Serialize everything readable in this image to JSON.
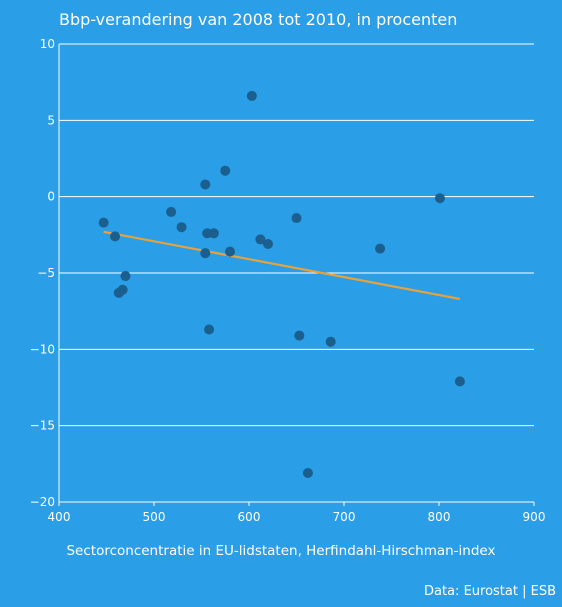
{
  "colors": {
    "background": "#2a9ee6",
    "grid": "#ffffff",
    "points": "#1a5f8e",
    "trendline": "#e8a23c",
    "text": "#ffffff"
  },
  "chart_data": {
    "type": "scatter",
    "title": "Bbp-verandering van 2008 tot 2010, in procenten",
    "xlabel": "Sectorconcentratie in EU-lidstaten, Herfindahl-Hirschman-index",
    "ylabel": "",
    "xlim": [
      400,
      900
    ],
    "ylim": [
      -20,
      10
    ],
    "xticks": [
      400,
      500,
      600,
      700,
      800,
      900
    ],
    "yticks": [
      10,
      5,
      0,
      -5,
      -10,
      -15,
      -20
    ],
    "xtick_labels": [
      "400",
      "500",
      "600",
      "700",
      "800",
      "900"
    ],
    "ytick_labels": [
      "10",
      "5",
      "0",
      "−5",
      "−10",
      "−15",
      "−20"
    ],
    "grid": "horizontal",
    "points": [
      {
        "x": 447,
        "y": -1.7
      },
      {
        "x": 459,
        "y": -2.6
      },
      {
        "x": 463,
        "y": -6.3
      },
      {
        "x": 467,
        "y": -6.1
      },
      {
        "x": 470,
        "y": -5.2
      },
      {
        "x": 518,
        "y": -1.0
      },
      {
        "x": 529,
        "y": -2.0
      },
      {
        "x": 554,
        "y": 0.8
      },
      {
        "x": 554,
        "y": -3.7
      },
      {
        "x": 556,
        "y": -2.4
      },
      {
        "x": 558,
        "y": -8.7
      },
      {
        "x": 563,
        "y": -2.4
      },
      {
        "x": 575,
        "y": 1.7
      },
      {
        "x": 580,
        "y": -3.6
      },
      {
        "x": 603,
        "y": 6.6
      },
      {
        "x": 612,
        "y": -2.8
      },
      {
        "x": 620,
        "y": -3.1
      },
      {
        "x": 650,
        "y": -1.4
      },
      {
        "x": 653,
        "y": -9.1
      },
      {
        "x": 662,
        "y": -18.1
      },
      {
        "x": 686,
        "y": -9.5
      },
      {
        "x": 738,
        "y": -3.4
      },
      {
        "x": 801,
        "y": -0.1
      },
      {
        "x": 822,
        "y": -12.1
      }
    ],
    "trendline": {
      "x": [
        447,
        822
      ],
      "y": [
        -2.3,
        -6.7
      ]
    }
  },
  "source": "Data: Eurostat | ESB"
}
